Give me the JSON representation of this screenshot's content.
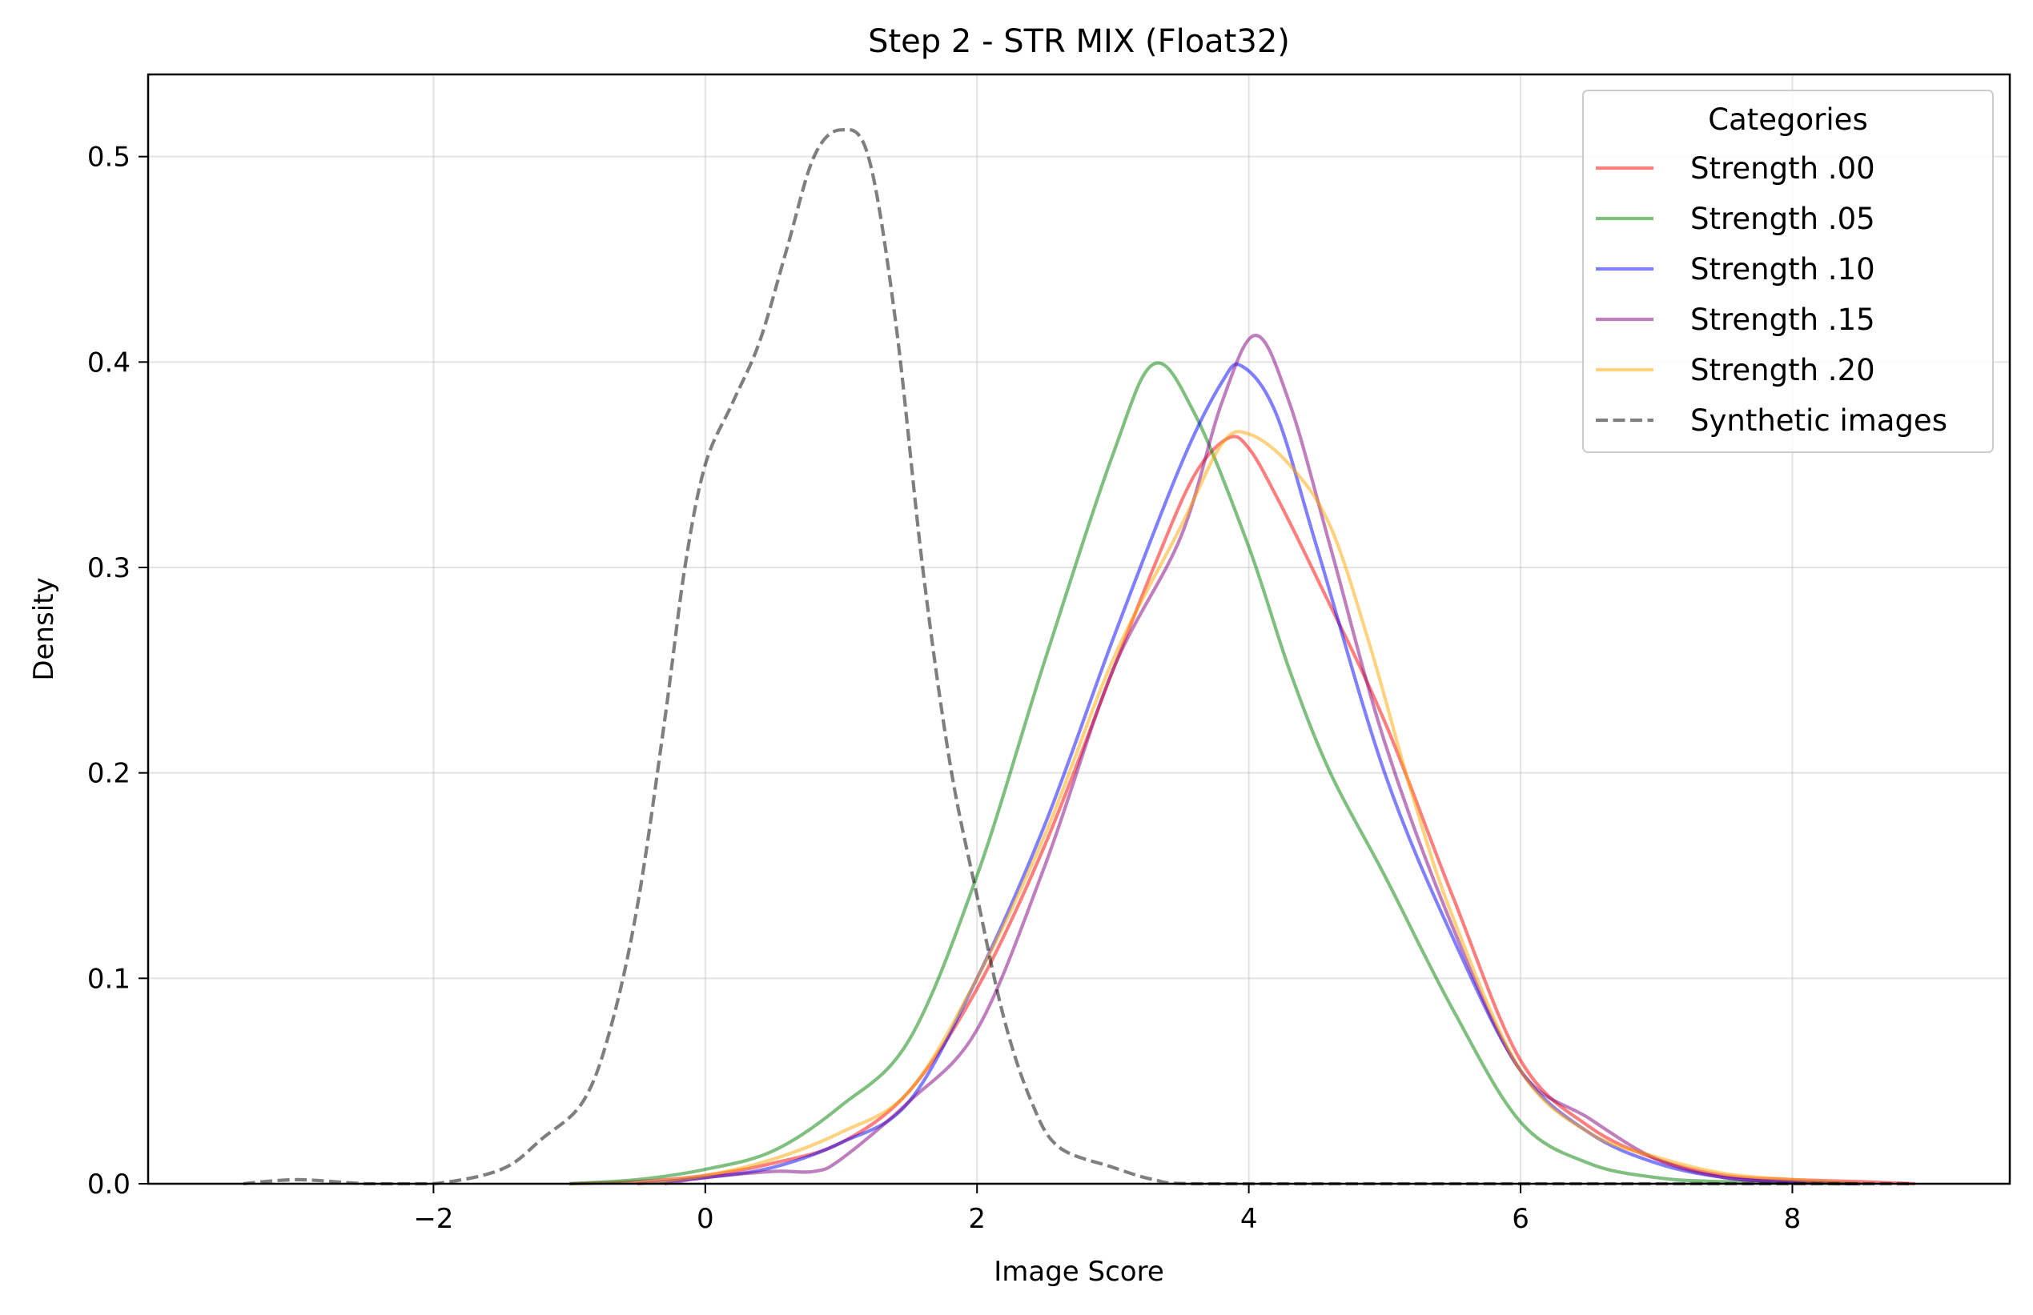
{
  "chart_data": {
    "type": "line",
    "title": "Step 2 - STR MIX (Float32)",
    "xlabel": "Image Score",
    "ylabel": "Density",
    "xlim": [
      -4.1,
      9.6
    ],
    "ylim": [
      0,
      0.54
    ],
    "x_ticks": [
      -2,
      0,
      2,
      4,
      6,
      8
    ],
    "x_tick_labels": [
      "−2",
      "0",
      "2",
      "4",
      "6",
      "8"
    ],
    "y_ticks": [
      0.0,
      0.1,
      0.2,
      0.3,
      0.4,
      0.5
    ],
    "y_tick_labels": [
      "0.0",
      "0.1",
      "0.2",
      "0.3",
      "0.4",
      "0.5"
    ],
    "grid": true,
    "legend": {
      "title": "Categories",
      "placement": "top-right"
    },
    "series": [
      {
        "name": "Strength .00",
        "color": "#ff0000",
        "dash": "solid",
        "points": [
          [
            -1.0,
            0.0
          ],
          [
            -0.5,
            0.001
          ],
          [
            0.0,
            0.004
          ],
          [
            0.5,
            0.01
          ],
          [
            1.0,
            0.02
          ],
          [
            1.5,
            0.045
          ],
          [
            2.0,
            0.095
          ],
          [
            2.5,
            0.165
          ],
          [
            3.0,
            0.25
          ],
          [
            3.3,
            0.3
          ],
          [
            3.6,
            0.345
          ],
          [
            3.85,
            0.363
          ],
          [
            4.0,
            0.358
          ],
          [
            4.2,
            0.335
          ],
          [
            4.5,
            0.295
          ],
          [
            5.0,
            0.225
          ],
          [
            5.5,
            0.14
          ],
          [
            6.0,
            0.06
          ],
          [
            6.5,
            0.028
          ],
          [
            7.0,
            0.012
          ],
          [
            7.5,
            0.004
          ],
          [
            8.0,
            0.002
          ],
          [
            8.5,
            0.001
          ],
          [
            8.9,
            0.0
          ]
        ]
      },
      {
        "name": "Strength .05",
        "color": "#008000",
        "dash": "solid",
        "points": [
          [
            -1.0,
            0.0
          ],
          [
            -0.5,
            0.002
          ],
          [
            0.0,
            0.007
          ],
          [
            0.5,
            0.016
          ],
          [
            1.0,
            0.038
          ],
          [
            1.5,
            0.07
          ],
          [
            2.0,
            0.15
          ],
          [
            2.5,
            0.255
          ],
          [
            3.0,
            0.355
          ],
          [
            3.3,
            0.399
          ],
          [
            3.6,
            0.375
          ],
          [
            4.0,
            0.31
          ],
          [
            4.3,
            0.25
          ],
          [
            4.6,
            0.2
          ],
          [
            5.0,
            0.15
          ],
          [
            5.5,
            0.085
          ],
          [
            6.0,
            0.03
          ],
          [
            6.5,
            0.01
          ],
          [
            7.0,
            0.003
          ],
          [
            7.5,
            0.001
          ],
          [
            8.5,
            0.0
          ]
        ]
      },
      {
        "name": "Strength .10",
        "color": "#0000ff",
        "dash": "solid",
        "points": [
          [
            -0.5,
            0.0
          ],
          [
            0.0,
            0.003
          ],
          [
            0.5,
            0.008
          ],
          [
            1.0,
            0.02
          ],
          [
            1.5,
            0.04
          ],
          [
            2.0,
            0.1
          ],
          [
            2.5,
            0.175
          ],
          [
            3.0,
            0.265
          ],
          [
            3.5,
            0.35
          ],
          [
            3.8,
            0.39
          ],
          [
            3.95,
            0.398
          ],
          [
            4.2,
            0.375
          ],
          [
            4.5,
            0.31
          ],
          [
            5.0,
            0.2
          ],
          [
            5.5,
            0.12
          ],
          [
            6.0,
            0.055
          ],
          [
            6.5,
            0.025
          ],
          [
            7.0,
            0.01
          ],
          [
            7.5,
            0.003
          ],
          [
            8.0,
            0.001
          ],
          [
            8.5,
            0.0
          ]
        ]
      },
      {
        "name": "Strength .15",
        "color": "#800080",
        "dash": "solid",
        "points": [
          [
            -0.3,
            0.0
          ],
          [
            0.0,
            0.003
          ],
          [
            0.5,
            0.006
          ],
          [
            0.8,
            0.006
          ],
          [
            1.0,
            0.012
          ],
          [
            1.5,
            0.04
          ],
          [
            2.0,
            0.075
          ],
          [
            2.5,
            0.155
          ],
          [
            3.0,
            0.25
          ],
          [
            3.5,
            0.315
          ],
          [
            3.8,
            0.38
          ],
          [
            4.05,
            0.413
          ],
          [
            4.3,
            0.38
          ],
          [
            4.6,
            0.31
          ],
          [
            5.0,
            0.215
          ],
          [
            5.5,
            0.125
          ],
          [
            6.0,
            0.055
          ],
          [
            6.5,
            0.032
          ],
          [
            7.0,
            0.012
          ],
          [
            7.5,
            0.003
          ],
          [
            8.0,
            0.001
          ],
          [
            8.5,
            0.0
          ]
        ]
      },
      {
        "name": "Strength .20",
        "color": "#ffa500",
        "dash": "solid",
        "points": [
          [
            -0.5,
            0.0
          ],
          [
            0.0,
            0.004
          ],
          [
            0.5,
            0.012
          ],
          [
            1.0,
            0.025
          ],
          [
            1.5,
            0.045
          ],
          [
            2.0,
            0.1
          ],
          [
            2.5,
            0.17
          ],
          [
            3.0,
            0.255
          ],
          [
            3.5,
            0.32
          ],
          [
            3.8,
            0.36
          ],
          [
            4.0,
            0.365
          ],
          [
            4.3,
            0.35
          ],
          [
            4.6,
            0.32
          ],
          [
            4.9,
            0.26
          ],
          [
            5.2,
            0.19
          ],
          [
            5.5,
            0.13
          ],
          [
            6.0,
            0.055
          ],
          [
            6.5,
            0.025
          ],
          [
            7.0,
            0.013
          ],
          [
            7.5,
            0.005
          ],
          [
            8.0,
            0.002
          ],
          [
            8.5,
            0.0
          ]
        ]
      },
      {
        "name": "Synthetic images",
        "color": "#000000",
        "dash": "dashed",
        "points": [
          [
            -3.4,
            0.0
          ],
          [
            -3.0,
            0.002
          ],
          [
            -2.5,
            0.0
          ],
          [
            -2.0,
            0.0
          ],
          [
            -1.5,
            0.007
          ],
          [
            -1.2,
            0.022
          ],
          [
            -0.9,
            0.04
          ],
          [
            -0.7,
            0.075
          ],
          [
            -0.5,
            0.135
          ],
          [
            -0.3,
            0.225
          ],
          [
            -0.15,
            0.3
          ],
          [
            0.0,
            0.35
          ],
          [
            0.2,
            0.38
          ],
          [
            0.4,
            0.41
          ],
          [
            0.6,
            0.455
          ],
          [
            0.8,
            0.5
          ],
          [
            1.0,
            0.513
          ],
          [
            1.2,
            0.5
          ],
          [
            1.4,
            0.42
          ],
          [
            1.6,
            0.3
          ],
          [
            1.8,
            0.205
          ],
          [
            2.0,
            0.14
          ],
          [
            2.2,
            0.08
          ],
          [
            2.4,
            0.04
          ],
          [
            2.6,
            0.018
          ],
          [
            3.0,
            0.008
          ],
          [
            3.3,
            0.002
          ],
          [
            3.6,
            0.0
          ],
          [
            5.0,
            0.0
          ],
          [
            8.9,
            0.0
          ]
        ]
      }
    ]
  }
}
